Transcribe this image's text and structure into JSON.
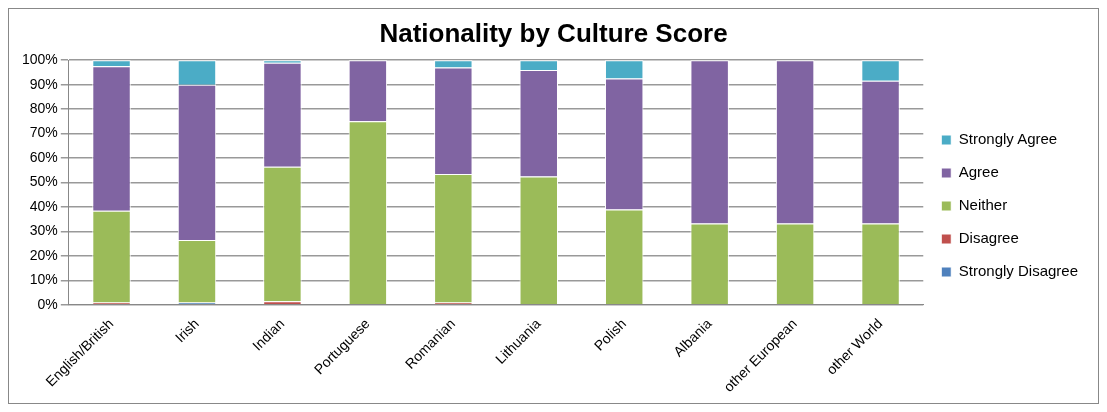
{
  "chart_data": {
    "type": "bar",
    "title": "Nationality by Culture Score",
    "stacked": true,
    "categories": [
      "English/British",
      "Irish",
      "Indian",
      "Portuguese",
      "Romanian",
      "Lithuania",
      "Polish",
      "Albania",
      "other European",
      "other World"
    ],
    "series": [
      {
        "name": "Strongly Disagree",
        "color": "#4f81bd",
        "values": [
          0,
          1,
          0,
          0,
          0,
          0,
          0,
          0,
          0,
          0
        ]
      },
      {
        "name": "Disagree",
        "color": "#c0504d",
        "values": [
          1,
          0,
          1.5,
          0,
          1,
          0,
          0,
          0,
          0,
          0
        ]
      },
      {
        "name": "Neither",
        "color": "#9bbb59",
        "values": [
          37.5,
          25.5,
          55,
          75,
          52.5,
          52.5,
          39,
          33.3,
          33.3,
          33.3
        ]
      },
      {
        "name": "Agree",
        "color": "#8064a2",
        "values": [
          59,
          63.5,
          42.5,
          25,
          43.5,
          43.5,
          53.5,
          66.7,
          66.7,
          58.3
        ]
      },
      {
        "name": "Strongly Agree",
        "color": "#4bacc6",
        "values": [
          2.5,
          10,
          1,
          0,
          3,
          4,
          7.5,
          0,
          0,
          8.4
        ]
      }
    ],
    "ylim": [
      0,
      100
    ],
    "yticks": [
      {
        "value": 0,
        "label": "0%"
      },
      {
        "value": 10,
        "label": "10%"
      },
      {
        "value": 20,
        "label": "20%"
      },
      {
        "value": 30,
        "label": "30%"
      },
      {
        "value": 40,
        "label": "40%"
      },
      {
        "value": 50,
        "label": "50%"
      },
      {
        "value": 60,
        "label": "60%"
      },
      {
        "value": 70,
        "label": "70%"
      },
      {
        "value": 80,
        "label": "80%"
      },
      {
        "value": 90,
        "label": "90%"
      },
      {
        "value": 100,
        "label": "100%"
      }
    ],
    "grid": "y",
    "legend": "right"
  }
}
